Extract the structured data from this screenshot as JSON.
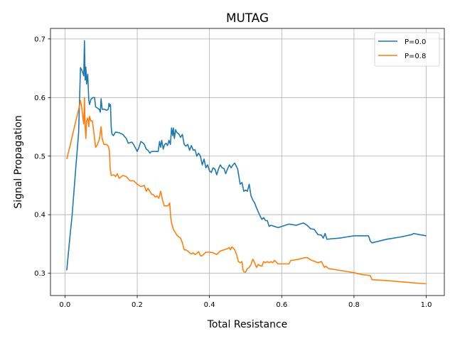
{
  "chart_data": {
    "type": "line",
    "title": "MUTAG",
    "xlabel": "Total Resistance",
    "ylabel": "Signal Propagation",
    "xlim": [
      -0.04,
      1.05
    ],
    "ylim": [
      0.262,
      0.718
    ],
    "xticks": [
      0.0,
      0.2,
      0.4,
      0.6,
      0.8,
      1.0
    ],
    "xtick_labels": [
      "0.0",
      "0.2",
      "0.4",
      "0.6",
      "0.8",
      "1.0"
    ],
    "yticks": [
      0.3,
      0.4,
      0.5,
      0.6,
      0.7
    ],
    "ytick_labels": [
      "0.3",
      "0.4",
      "0.5",
      "0.6",
      "0.7"
    ],
    "grid": true,
    "legend_position": "top-right",
    "series": [
      {
        "name": "P=0.0",
        "color": "#1f77b4",
        "points": [
          [
            0.005,
            0.305
          ],
          [
            0.012,
            0.35
          ],
          [
            0.02,
            0.4
          ],
          [
            0.03,
            0.48
          ],
          [
            0.038,
            0.54
          ],
          [
            0.043,
            0.651
          ],
          [
            0.048,
            0.645
          ],
          [
            0.052,
            0.637
          ],
          [
            0.054,
            0.697
          ],
          [
            0.056,
            0.63
          ],
          [
            0.058,
            0.652
          ],
          [
            0.06,
            0.623
          ],
          [
            0.063,
            0.64
          ],
          [
            0.066,
            0.595
          ],
          [
            0.068,
            0.588
          ],
          [
            0.072,
            0.597
          ],
          [
            0.078,
            0.6
          ],
          [
            0.082,
            0.6
          ],
          [
            0.085,
            0.584
          ],
          [
            0.09,
            0.582
          ],
          [
            0.095,
            0.58
          ],
          [
            0.098,
            0.575
          ],
          [
            0.1,
            0.598
          ],
          [
            0.103,
            0.58
          ],
          [
            0.11,
            0.58
          ],
          [
            0.115,
            0.578
          ],
          [
            0.12,
            0.58
          ],
          [
            0.122,
            0.59
          ],
          [
            0.124,
            0.585
          ],
          [
            0.126,
            0.588
          ],
          [
            0.128,
            0.55
          ],
          [
            0.13,
            0.538
          ],
          [
            0.134,
            0.535
          ],
          [
            0.14,
            0.541
          ],
          [
            0.15,
            0.54
          ],
          [
            0.16,
            0.537
          ],
          [
            0.17,
            0.53
          ],
          [
            0.175,
            0.522
          ],
          [
            0.185,
            0.524
          ],
          [
            0.19,
            0.52
          ],
          [
            0.2,
            0.508
          ],
          [
            0.205,
            0.515
          ],
          [
            0.21,
            0.525
          ],
          [
            0.215,
            0.523
          ],
          [
            0.22,
            0.52
          ],
          [
            0.225,
            0.512
          ],
          [
            0.23,
            0.51
          ],
          [
            0.235,
            0.505
          ],
          [
            0.24,
            0.508
          ],
          [
            0.25,
            0.508
          ],
          [
            0.258,
            0.508
          ],
          [
            0.262,
            0.525
          ],
          [
            0.265,
            0.515
          ],
          [
            0.268,
            0.527
          ],
          [
            0.272,
            0.512
          ],
          [
            0.276,
            0.52
          ],
          [
            0.28,
            0.522
          ],
          [
            0.284,
            0.518
          ],
          [
            0.288,
            0.527
          ],
          [
            0.292,
            0.52
          ],
          [
            0.295,
            0.548
          ],
          [
            0.298,
            0.535
          ],
          [
            0.3,
            0.548
          ],
          [
            0.303,
            0.53
          ],
          [
            0.306,
            0.545
          ],
          [
            0.31,
            0.54
          ],
          [
            0.315,
            0.538
          ],
          [
            0.32,
            0.532
          ],
          [
            0.325,
            0.537
          ],
          [
            0.33,
            0.52
          ],
          [
            0.335,
            0.517
          ],
          [
            0.34,
            0.52
          ],
          [
            0.345,
            0.51
          ],
          [
            0.35,
            0.518
          ],
          [
            0.355,
            0.51
          ],
          [
            0.36,
            0.511
          ],
          [
            0.365,
            0.5
          ],
          [
            0.37,
            0.505
          ],
          [
            0.375,
            0.5
          ],
          [
            0.38,
            0.485
          ],
          [
            0.385,
            0.495
          ],
          [
            0.39,
            0.48
          ],
          [
            0.395,
            0.485
          ],
          [
            0.4,
            0.475
          ],
          [
            0.405,
            0.472
          ],
          [
            0.41,
            0.48
          ],
          [
            0.415,
            0.478
          ],
          [
            0.42,
            0.468
          ],
          [
            0.425,
            0.478
          ],
          [
            0.43,
            0.485
          ],
          [
            0.435,
            0.48
          ],
          [
            0.44,
            0.479
          ],
          [
            0.445,
            0.47
          ],
          [
            0.45,
            0.478
          ],
          [
            0.455,
            0.485
          ],
          [
            0.46,
            0.48
          ],
          [
            0.465,
            0.485
          ],
          [
            0.47,
            0.488
          ],
          [
            0.478,
            0.478
          ],
          [
            0.485,
            0.452
          ],
          [
            0.49,
            0.455
          ],
          [
            0.495,
            0.44
          ],
          [
            0.5,
            0.442
          ],
          [
            0.505,
            0.44
          ],
          [
            0.51,
            0.452
          ],
          [
            0.515,
            0.432
          ],
          [
            0.52,
            0.425
          ],
          [
            0.525,
            0.42
          ],
          [
            0.53,
            0.412
          ],
          [
            0.535,
            0.405
          ],
          [
            0.54,
            0.398
          ],
          [
            0.545,
            0.392
          ],
          [
            0.55,
            0.395
          ],
          [
            0.555,
            0.39
          ],
          [
            0.56,
            0.39
          ],
          [
            0.565,
            0.38
          ],
          [
            0.57,
            0.382
          ],
          [
            0.58,
            0.38
          ],
          [
            0.59,
            0.378
          ],
          [
            0.6,
            0.38
          ],
          [
            0.62,
            0.384
          ],
          [
            0.64,
            0.382
          ],
          [
            0.66,
            0.386
          ],
          [
            0.67,
            0.382
          ],
          [
            0.68,
            0.376
          ],
          [
            0.69,
            0.375
          ],
          [
            0.7,
            0.366
          ],
          [
            0.71,
            0.365
          ],
          [
            0.715,
            0.36
          ],
          [
            0.72,
            0.368
          ],
          [
            0.725,
            0.358
          ],
          [
            0.74,
            0.359
          ],
          [
            0.76,
            0.36
          ],
          [
            0.78,
            0.362
          ],
          [
            0.8,
            0.364
          ],
          [
            0.82,
            0.364
          ],
          [
            0.84,
            0.364
          ],
          [
            0.845,
            0.355
          ],
          [
            0.85,
            0.352
          ],
          [
            0.87,
            0.355
          ],
          [
            0.89,
            0.358
          ],
          [
            0.93,
            0.362
          ],
          [
            0.96,
            0.366
          ],
          [
            0.965,
            0.368
          ],
          [
            0.98,
            0.366
          ],
          [
            1.0,
            0.364
          ]
        ]
      },
      {
        "name": "P=0.8",
        "color": "#ff7f0e",
        "points": [
          [
            0.005,
            0.495
          ],
          [
            0.015,
            0.52
          ],
          [
            0.03,
            0.56
          ],
          [
            0.04,
            0.585
          ],
          [
            0.043,
            0.595
          ],
          [
            0.046,
            0.585
          ],
          [
            0.05,
            0.565
          ],
          [
            0.052,
            0.555
          ],
          [
            0.054,
            0.6
          ],
          [
            0.056,
            0.55
          ],
          [
            0.058,
            0.53
          ],
          [
            0.06,
            0.56
          ],
          [
            0.063,
            0.565
          ],
          [
            0.066,
            0.55
          ],
          [
            0.068,
            0.568
          ],
          [
            0.072,
            0.56
          ],
          [
            0.076,
            0.56
          ],
          [
            0.08,
            0.54
          ],
          [
            0.085,
            0.515
          ],
          [
            0.09,
            0.52
          ],
          [
            0.095,
            0.528
          ],
          [
            0.098,
            0.54
          ],
          [
            0.1,
            0.55
          ],
          [
            0.103,
            0.53
          ],
          [
            0.108,
            0.52
          ],
          [
            0.115,
            0.52
          ],
          [
            0.12,
            0.517
          ],
          [
            0.123,
            0.51
          ],
          [
            0.125,
            0.48
          ],
          [
            0.128,
            0.467
          ],
          [
            0.135,
            0.468
          ],
          [
            0.14,
            0.465
          ],
          [
            0.145,
            0.47
          ],
          [
            0.15,
            0.462
          ],
          [
            0.16,
            0.467
          ],
          [
            0.17,
            0.465
          ],
          [
            0.18,
            0.458
          ],
          [
            0.19,
            0.458
          ],
          [
            0.2,
            0.452
          ],
          [
            0.21,
            0.448
          ],
          [
            0.22,
            0.45
          ],
          [
            0.225,
            0.44
          ],
          [
            0.23,
            0.445
          ],
          [
            0.24,
            0.435
          ],
          [
            0.245,
            0.434
          ],
          [
            0.25,
            0.43
          ],
          [
            0.255,
            0.432
          ],
          [
            0.26,
            0.428
          ],
          [
            0.265,
            0.44
          ],
          [
            0.27,
            0.425
          ],
          [
            0.275,
            0.415
          ],
          [
            0.28,
            0.415
          ],
          [
            0.285,
            0.415
          ],
          [
            0.29,
            0.42
          ],
          [
            0.293,
            0.395
          ],
          [
            0.295,
            0.386
          ],
          [
            0.3,
            0.375
          ],
          [
            0.305,
            0.37
          ],
          [
            0.31,
            0.365
          ],
          [
            0.315,
            0.362
          ],
          [
            0.32,
            0.36
          ],
          [
            0.325,
            0.352
          ],
          [
            0.33,
            0.34
          ],
          [
            0.335,
            0.34
          ],
          [
            0.34,
            0.338
          ],
          [
            0.345,
            0.335
          ],
          [
            0.35,
            0.333
          ],
          [
            0.355,
            0.335
          ],
          [
            0.36,
            0.332
          ],
          [
            0.365,
            0.334
          ],
          [
            0.37,
            0.337
          ],
          [
            0.375,
            0.33
          ],
          [
            0.38,
            0.33
          ],
          [
            0.39,
            0.336
          ],
          [
            0.4,
            0.336
          ],
          [
            0.41,
            0.335
          ],
          [
            0.42,
            0.332
          ],
          [
            0.43,
            0.338
          ],
          [
            0.44,
            0.34
          ],
          [
            0.45,
            0.342
          ],
          [
            0.455,
            0.344
          ],
          [
            0.458,
            0.34
          ],
          [
            0.462,
            0.345
          ],
          [
            0.466,
            0.343
          ],
          [
            0.47,
            0.34
          ],
          [
            0.475,
            0.332
          ],
          [
            0.48,
            0.32
          ],
          [
            0.485,
            0.318
          ],
          [
            0.49,
            0.32
          ],
          [
            0.493,
            0.305
          ],
          [
            0.496,
            0.302
          ],
          [
            0.5,
            0.302
          ],
          [
            0.505,
            0.308
          ],
          [
            0.51,
            0.31
          ],
          [
            0.515,
            0.315
          ],
          [
            0.52,
            0.324
          ],
          [
            0.525,
            0.318
          ],
          [
            0.53,
            0.31
          ],
          [
            0.535,
            0.315
          ],
          [
            0.54,
            0.313
          ],
          [
            0.545,
            0.312
          ],
          [
            0.55,
            0.32
          ],
          [
            0.555,
            0.318
          ],
          [
            0.56,
            0.32
          ],
          [
            0.565,
            0.318
          ],
          [
            0.57,
            0.32
          ],
          [
            0.575,
            0.318
          ],
          [
            0.58,
            0.322
          ],
          [
            0.59,
            0.316
          ],
          [
            0.6,
            0.316
          ],
          [
            0.62,
            0.316
          ],
          [
            0.625,
            0.322
          ],
          [
            0.64,
            0.323
          ],
          [
            0.66,
            0.326
          ],
          [
            0.67,
            0.327
          ],
          [
            0.68,
            0.323
          ],
          [
            0.7,
            0.318
          ],
          [
            0.71,
            0.32
          ],
          [
            0.718,
            0.31
          ],
          [
            0.722,
            0.312
          ],
          [
            0.73,
            0.308
          ],
          [
            0.76,
            0.305
          ],
          [
            0.8,
            0.301
          ],
          [
            0.82,
            0.298
          ],
          [
            0.845,
            0.296
          ],
          [
            0.85,
            0.289
          ],
          [
            0.88,
            0.288
          ],
          [
            0.92,
            0.286
          ],
          [
            0.96,
            0.284
          ],
          [
            1.0,
            0.282
          ]
        ]
      }
    ]
  }
}
